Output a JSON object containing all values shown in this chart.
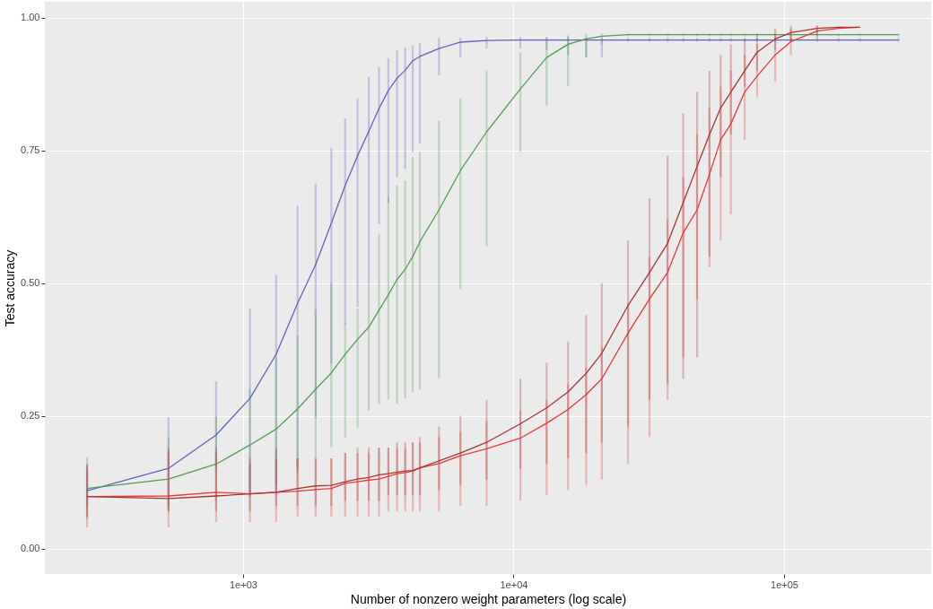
{
  "chart_data": {
    "type": "line",
    "xlabel": "Number of nonzero weight parameters (log scale)",
    "ylabel": "Test accuracy",
    "log": "x",
    "grid": true,
    "xlim": [
      185,
      350000
    ],
    "ylim": [
      -0.048,
      1.03
    ],
    "xticks": [
      {
        "value": 1000,
        "label": "1e+03"
      },
      {
        "value": 10000,
        "label": "1e+04"
      },
      {
        "value": 100000,
        "label": "1e+05"
      }
    ],
    "yticks": [
      {
        "value": 0,
        "label": "0.00"
      },
      {
        "value": 0.25,
        "label": "0.25"
      },
      {
        "value": 0.5,
        "label": "0.50"
      },
      {
        "value": 0.75,
        "label": "0.75"
      },
      {
        "value": 1,
        "label": "1.00"
      }
    ],
    "x": [
      265,
      530,
      795,
      1060,
      1325,
      1590,
      1855,
      2120,
      2385,
      2650,
      2915,
      3180,
      3445,
      3710,
      3975,
      4240,
      4505,
      5300,
      6360,
      7950,
      10600,
      13250,
      15900,
      18550,
      21200,
      26500,
      31800,
      37100,
      42400,
      47700,
      53000,
      58300,
      63600,
      71550,
      79500,
      92750,
      106000,
      132500,
      159000,
      190800,
      265000
    ],
    "series": [
      {
        "color": "#6161bd",
        "values": [
          0.109,
          0.151,
          0.214,
          0.283,
          0.366,
          0.462,
          0.535,
          0.613,
          0.684,
          0.74,
          0.786,
          0.829,
          0.863,
          0.886,
          0.901,
          0.919,
          0.927,
          0.942,
          0.954,
          0.957,
          0.958,
          0.958,
          0.958,
          0.958,
          0.958,
          0.958,
          0.958,
          0.958,
          0.958,
          0.958,
          0.958,
          0.958,
          0.958,
          0.958,
          0.958,
          0.958,
          0.958,
          0.958,
          0.958,
          0.958,
          0.958
        ],
        "errors": [
          [
            0.078,
            0.157
          ],
          [
            0.078,
            0.247
          ],
          [
            0.152,
            0.315
          ],
          [
            0.098,
            0.452
          ],
          [
            0.104,
            0.515
          ],
          [
            0.151,
            0.646
          ],
          [
            0.247,
            0.687
          ],
          [
            0.348,
            0.755
          ],
          [
            0.422,
            0.81
          ],
          [
            0.455,
            0.848
          ],
          [
            0.497,
            0.889
          ],
          [
            0.611,
            0.907
          ],
          [
            0.651,
            0.924
          ],
          [
            0.7,
            0.939
          ],
          [
            0.715,
            0.944
          ],
          [
            0.747,
            0.947
          ],
          [
            0.763,
            0.952
          ],
          [
            0.891,
            0.962
          ],
          [
            0.925,
            0.962
          ],
          [
            0.942,
            0.964
          ],
          [
            0.942,
            0.964
          ],
          [
            0.939,
            0.964
          ],
          [
            0.93,
            0.964
          ],
          [
            0.925,
            0.962
          ],
          [
            0.925,
            0.962
          ],
          [
            0.955,
            0.962
          ],
          [
            0.955,
            0.962
          ],
          [
            0.955,
            0.962
          ],
          [
            0.955,
            0.962
          ],
          [
            0.955,
            0.962
          ],
          [
            0.955,
            0.962
          ],
          [
            0.955,
            0.962
          ],
          [
            0.955,
            0.962
          ],
          [
            0.955,
            0.962
          ],
          [
            0.955,
            0.962
          ],
          [
            0.955,
            0.962
          ],
          [
            0.955,
            0.962
          ],
          [
            0.955,
            0.962
          ],
          [
            0.955,
            0.962
          ],
          [
            0.955,
            0.962
          ],
          [
            0.955,
            0.962
          ]
        ]
      },
      {
        "color": "#529c52",
        "values": [
          0.113,
          0.131,
          0.159,
          0.195,
          0.225,
          0.263,
          0.3,
          0.331,
          0.366,
          0.394,
          0.417,
          0.449,
          0.478,
          0.507,
          0.526,
          0.55,
          0.578,
          0.638,
          0.712,
          0.785,
          0.866,
          0.925,
          0.95,
          0.96,
          0.965,
          0.968,
          0.968,
          0.968,
          0.968,
          0.968,
          0.968,
          0.968,
          0.968,
          0.968,
          0.968,
          0.968,
          0.968,
          0.968,
          0.968,
          0.968,
          0.968
        ],
        "errors": [
          [
            0.056,
            0.172
          ],
          [
            0.07,
            0.21
          ],
          [
            0.09,
            0.25
          ],
          [
            0.1,
            0.3
          ],
          [
            0.12,
            0.36
          ],
          [
            0.14,
            0.4
          ],
          [
            0.17,
            0.45
          ],
          [
            0.19,
            0.5
          ],
          [
            0.209,
            0.425
          ],
          [
            0.228,
            0.452
          ],
          [
            0.26,
            0.497
          ],
          [
            0.273,
            0.593
          ],
          [
            0.281,
            0.662
          ],
          [
            0.273,
            0.684
          ],
          [
            0.283,
            0.694
          ],
          [
            0.295,
            0.738
          ],
          [
            0.3,
            0.747
          ],
          [
            0.321,
            0.806
          ],
          [
            0.489,
            0.848
          ],
          [
            0.57,
            0.901
          ],
          [
            0.747,
            0.935
          ],
          [
            0.834,
            0.962
          ],
          [
            0.871,
            0.967
          ],
          [
            0.925,
            0.97
          ],
          [
            0.95,
            0.97
          ],
          [
            0.965,
            0.97
          ],
          [
            0.965,
            0.97
          ],
          [
            0.965,
            0.97
          ],
          [
            0.965,
            0.97
          ],
          [
            0.965,
            0.97
          ],
          [
            0.965,
            0.97
          ],
          [
            0.965,
            0.97
          ],
          [
            0.965,
            0.97
          ],
          [
            0.965,
            0.97
          ],
          [
            0.965,
            0.97
          ],
          [
            0.965,
            0.97
          ],
          [
            0.965,
            0.97
          ],
          [
            0.965,
            0.97
          ],
          [
            0.965,
            0.97
          ],
          [
            0.965,
            0.97
          ],
          [
            0.965,
            0.97
          ]
        ]
      },
      {
        "color": "#e83838",
        "values": [
          0.098,
          0.099,
          0.106,
          0.103,
          0.106,
          0.108,
          0.111,
          0.113,
          0.123,
          0.126,
          0.129,
          0.131,
          0.136,
          0.141,
          0.143,
          0.146,
          0.152,
          0.16,
          0.175,
          0.188,
          0.208,
          0.236,
          0.262,
          0.29,
          0.32,
          0.406,
          0.47,
          0.52,
          0.595,
          0.638,
          0.705,
          0.77,
          0.8,
          0.86,
          0.89,
          0.93,
          0.955,
          0.975,
          0.98,
          0.982,
          null
        ],
        "errors": [
          [
            0.04,
            0.15
          ],
          [
            0.04,
            0.18
          ],
          [
            0.05,
            0.18
          ],
          [
            0.05,
            0.17
          ],
          [
            0.05,
            0.17
          ],
          [
            0.06,
            0.17
          ],
          [
            0.06,
            0.17
          ],
          [
            0.06,
            0.17
          ],
          [
            0.06,
            0.18
          ],
          [
            0.06,
            0.18
          ],
          [
            0.06,
            0.18
          ],
          [
            0.06,
            0.19
          ],
          [
            0.07,
            0.19
          ],
          [
            0.07,
            0.19
          ],
          [
            0.07,
            0.19
          ],
          [
            0.07,
            0.2
          ],
          [
            0.07,
            0.2
          ],
          [
            0.07,
            0.21
          ],
          [
            0.08,
            0.22
          ],
          [
            0.08,
            0.24
          ],
          [
            0.09,
            0.26
          ],
          [
            0.1,
            0.28
          ],
          [
            0.11,
            0.31
          ],
          [
            0.12,
            0.34
          ],
          [
            0.13,
            0.38
          ],
          [
            0.16,
            0.46
          ],
          [
            0.21,
            0.55
          ],
          [
            0.28,
            0.62
          ],
          [
            0.36,
            0.7
          ],
          [
            0.47,
            0.78
          ],
          [
            0.53,
            0.83
          ],
          [
            0.58,
            0.87
          ],
          [
            0.63,
            0.9
          ],
          [
            0.77,
            0.93
          ],
          [
            0.85,
            0.95
          ],
          [
            0.88,
            0.97
          ],
          [
            0.93,
            0.98
          ],
          [
            0.96,
            0.985
          ],
          null,
          null,
          null
        ]
      },
      {
        "color": "#a83434",
        "values": [
          0.098,
          0.094,
          0.099,
          0.103,
          0.106,
          0.113,
          0.118,
          0.119,
          0.126,
          0.131,
          0.134,
          0.139,
          0.141,
          0.144,
          0.146,
          0.147,
          0.152,
          0.165,
          0.18,
          0.2,
          0.235,
          0.265,
          0.295,
          0.33,
          0.368,
          0.458,
          0.52,
          0.575,
          0.652,
          0.72,
          0.78,
          0.83,
          0.86,
          0.9,
          0.935,
          0.96,
          0.972,
          0.98,
          0.982,
          0.982,
          null
        ],
        "errors": [
          [
            0.06,
            0.16
          ],
          [
            0.07,
            0.19
          ],
          [
            0.07,
            0.19
          ],
          [
            0.07,
            0.16
          ],
          [
            0.08,
            0.19
          ],
          [
            0.08,
            0.17
          ],
          [
            0.08,
            0.17
          ],
          [
            0.08,
            0.17
          ],
          [
            0.09,
            0.18
          ],
          [
            0.09,
            0.19
          ],
          [
            0.09,
            0.19
          ],
          [
            0.09,
            0.19
          ],
          [
            0.1,
            0.19
          ],
          [
            0.1,
            0.2
          ],
          [
            0.1,
            0.2
          ],
          [
            0.1,
            0.2
          ],
          [
            0.1,
            0.21
          ],
          [
            0.11,
            0.23
          ],
          [
            0.12,
            0.25
          ],
          [
            0.13,
            0.28
          ],
          [
            0.15,
            0.32
          ],
          [
            0.16,
            0.35
          ],
          [
            0.17,
            0.39
          ],
          [
            0.18,
            0.44
          ],
          [
            0.2,
            0.5
          ],
          [
            0.23,
            0.58
          ],
          [
            0.28,
            0.66
          ],
          [
            0.31,
            0.74
          ],
          [
            0.32,
            0.82
          ],
          [
            0.36,
            0.86
          ],
          [
            0.55,
            0.9
          ],
          [
            0.7,
            0.93
          ],
          [
            0.78,
            0.95
          ],
          [
            0.87,
            0.96
          ],
          [
            0.9,
            0.97
          ],
          [
            0.94,
            0.98
          ],
          [
            0.955,
            0.985
          ],
          [
            0.97,
            0.985
          ],
          null,
          null,
          null
        ]
      }
    ]
  }
}
